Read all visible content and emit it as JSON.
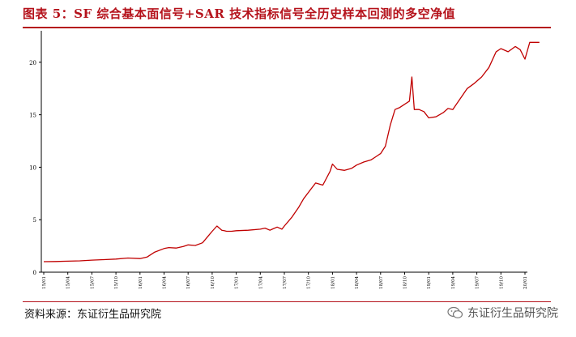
{
  "header": {
    "title": "图表 5：SF 综合基本面信号+SAR 技术指标信号全历史样本回测的多空净值"
  },
  "footer": {
    "source": "资料来源：东证衍生品研究院",
    "watermark": "东证衍生品研究院",
    "watermark_icon": "wechat-icon"
  },
  "colors": {
    "accent": "#b5121b",
    "line": "#c00000"
  },
  "chart_data": {
    "type": "line",
    "title": "",
    "xlabel": "",
    "ylabel": "",
    "ylim": [
      0,
      23
    ],
    "yticks": [
      0,
      5,
      10,
      15,
      20
    ],
    "grid": false,
    "legend": "none",
    "xticks": [
      "15/01",
      "15/04",
      "15/07",
      "15/10",
      "16/01",
      "16/04",
      "16/07",
      "16/10",
      "17/01",
      "17/04",
      "17/07",
      "17/10",
      "18/01",
      "18/04",
      "18/07",
      "18/10",
      "19/01",
      "19/04",
      "19/07",
      "19/10",
      "20/01"
    ],
    "series": [
      {
        "name": "",
        "x": [
          0.0,
          0.5,
          1.0,
          1.5,
          2.0,
          2.5,
          3.0,
          3.5,
          4.0,
          4.3,
          4.6,
          5.0,
          5.2,
          5.5,
          5.8,
          6.0,
          6.3,
          6.6,
          7.0,
          7.2,
          7.4,
          7.5,
          7.6,
          7.8,
          8.0,
          8.5,
          9.0,
          9.2,
          9.4,
          9.5,
          9.7,
          9.9,
          10.0,
          10.3,
          10.6,
          10.8,
          11.0,
          11.3,
          11.6,
          11.9,
          12.0,
          12.2,
          12.5,
          12.8,
          13.0,
          13.3,
          13.6,
          13.8,
          14.0,
          14.2,
          14.4,
          14.6,
          14.8,
          15.0,
          15.2,
          15.3,
          15.4,
          15.6,
          15.8,
          16.0,
          16.3,
          16.6,
          16.8,
          17.0,
          17.3,
          17.6,
          17.9,
          18.2,
          18.5,
          18.8,
          19.0,
          19.3,
          19.6,
          19.8,
          20.0,
          20.2,
          20.4,
          20.6
        ],
        "values": [
          1.0,
          1.02,
          1.05,
          1.08,
          1.15,
          1.2,
          1.25,
          1.35,
          1.3,
          1.45,
          1.9,
          2.25,
          2.35,
          2.3,
          2.45,
          2.6,
          2.55,
          2.8,
          3.9,
          4.4,
          4.0,
          3.95,
          3.9,
          3.9,
          3.95,
          4.0,
          4.1,
          4.2,
          4.0,
          4.1,
          4.3,
          4.1,
          4.4,
          5.2,
          6.2,
          7.0,
          7.6,
          8.5,
          8.3,
          9.6,
          10.3,
          9.8,
          9.7,
          9.9,
          10.2,
          10.5,
          10.7,
          11.0,
          11.3,
          12.0,
          14.0,
          15.5,
          15.7,
          16.0,
          16.3,
          18.6,
          15.5,
          15.5,
          15.3,
          14.7,
          14.8,
          15.2,
          15.6,
          15.5,
          16.5,
          17.5,
          18.0,
          18.6,
          19.5,
          21.0,
          21.3,
          21.0,
          21.5,
          21.2,
          20.3,
          21.9,
          21.9,
          21.9
        ]
      }
    ]
  }
}
